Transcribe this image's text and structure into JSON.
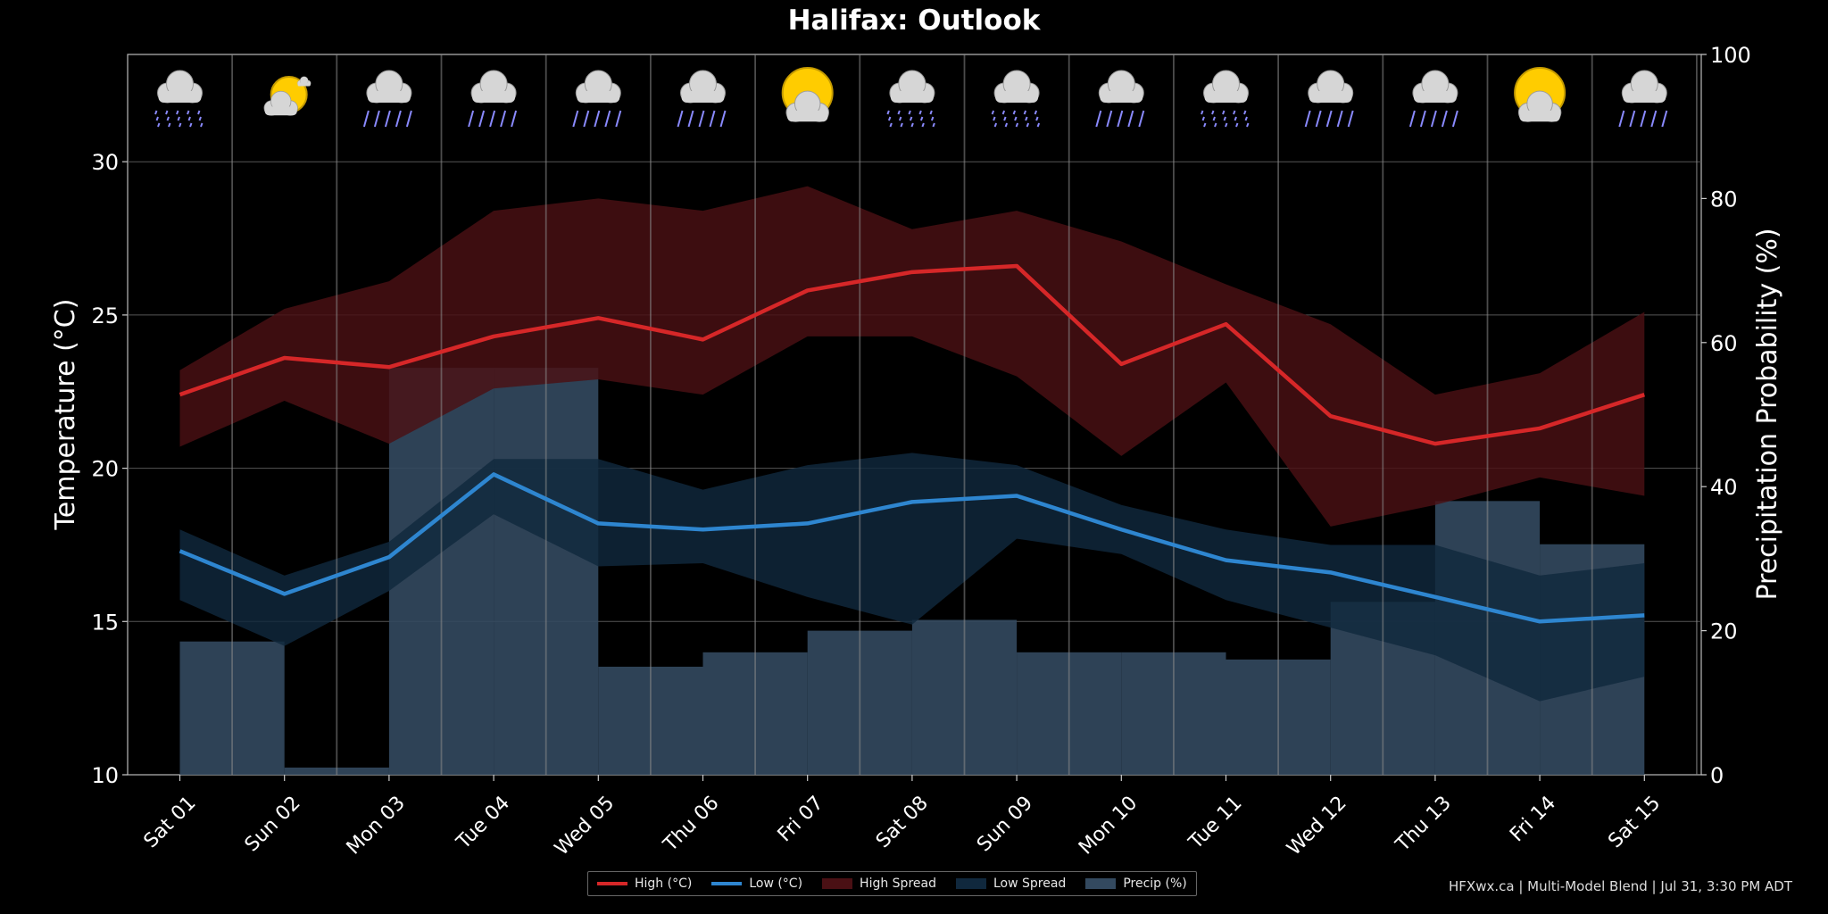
{
  "chart_data": {
    "type": "line",
    "title": "Halifax: Outlook",
    "ylabel": "Temperature (°C)",
    "y2label": "Precipitation Probability (%)",
    "ylim": [
      10,
      33.5
    ],
    "y2lim": [
      0,
      100
    ],
    "yticks": [
      10,
      15,
      20,
      25,
      30
    ],
    "y2ticks": [
      0,
      20,
      40,
      60,
      80,
      100
    ],
    "grid": true,
    "categories": [
      "Sat 01",
      "Sun 02",
      "Mon 03",
      "Tue 04",
      "Wed 05",
      "Thu 06",
      "Fri 07",
      "Sat 08",
      "Sun 09",
      "Mon 10",
      "Tue 11",
      "Wed 12",
      "Thu 13",
      "Fri 14",
      "Sat 15"
    ],
    "weather_icons": [
      "rain-heavy",
      "partly-sunny",
      "rain",
      "rain",
      "rain",
      "rain",
      "sunny-cloudy",
      "rain-heavy",
      "rain-heavy",
      "rain",
      "rain-heavy",
      "rain",
      "rain",
      "sunny-cloudy",
      "rain"
    ],
    "series": [
      {
        "name": "High (°C)",
        "type": "line",
        "color": "#d62728",
        "values": [
          22.4,
          23.6,
          23.3,
          24.3,
          24.9,
          24.2,
          25.8,
          26.4,
          26.6,
          23.4,
          24.7,
          21.7,
          20.8,
          21.3,
          22.4
        ]
      },
      {
        "name": "Low (°C)",
        "type": "line",
        "color": "#2e86d0",
        "values": [
          17.3,
          15.9,
          17.1,
          19.8,
          18.2,
          18.0,
          18.2,
          18.9,
          19.1,
          18.0,
          17.0,
          16.6,
          15.8,
          15.0,
          15.2
        ]
      },
      {
        "name": "High Spread",
        "type": "band",
        "color": "#4a1014",
        "upper": [
          23.2,
          25.2,
          26.1,
          28.4,
          28.8,
          28.4,
          29.2,
          27.8,
          28.4,
          27.4,
          26.0,
          24.7,
          22.4,
          23.1,
          25.1
        ],
        "lower": [
          20.7,
          22.2,
          20.8,
          22.6,
          22.9,
          22.4,
          24.3,
          24.3,
          23.0,
          20.4,
          22.8,
          18.1,
          18.8,
          19.7,
          19.1
        ]
      },
      {
        "name": "Low Spread",
        "type": "band",
        "color": "#10283d",
        "upper": [
          18.0,
          16.5,
          17.6,
          20.3,
          20.3,
          19.3,
          20.1,
          20.5,
          20.1,
          18.8,
          18.0,
          17.5,
          17.5,
          16.5,
          16.9
        ],
        "lower": [
          15.7,
          14.2,
          16.0,
          18.5,
          16.8,
          16.9,
          15.8,
          14.9,
          17.7,
          17.2,
          15.7,
          14.8,
          13.9,
          12.4,
          13.2
        ]
      },
      {
        "name": "Precip (%)",
        "type": "step-bar",
        "color": "#33495f",
        "values": [
          18.5,
          1,
          56.5,
          56.5,
          15,
          17,
          20,
          21.5,
          17,
          17,
          16,
          24,
          38,
          32,
          32
        ]
      }
    ],
    "legend": {
      "placement": "bottom-center",
      "items": [
        "High (°C)",
        "Low (°C)",
        "High Spread",
        "Low Spread",
        "Precip (%)"
      ]
    }
  },
  "credit": "HFXwx.ca | Multi-Model Blend | Jul 31, 3:30 PM ADT",
  "colors": {
    "background": "#000000",
    "high": "#d62728",
    "low": "#2e86d0",
    "high_spread": "#4a1014",
    "low_spread": "#10283d",
    "precip": "#33495f"
  }
}
